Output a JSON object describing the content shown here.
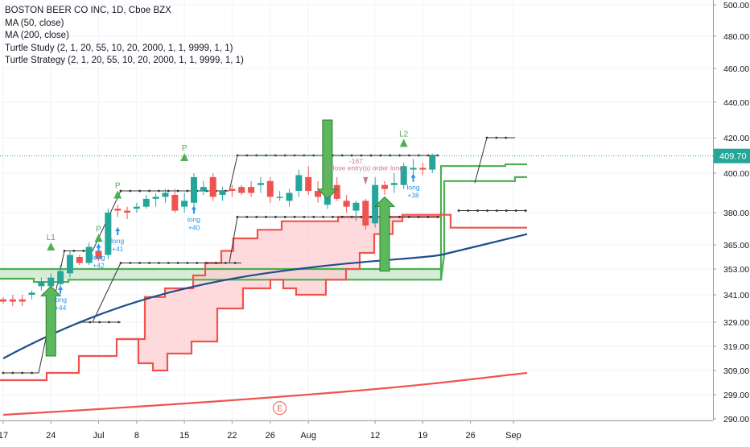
{
  "legend": {
    "symbol": "BOSTON BEER CO INC, 1D, Cboe BZX",
    "ma50": "MA (50, close)",
    "ma200": "MA (200, close)",
    "turtle_study": "Turtle Study (2, 1, 20, 55, 10, 20, 2000, 1, 1, 9999, 1, 1)",
    "turtle_strategy": "Turtle Strategy (2, 1, 20, 55, 10, 20, 2000, 1, 1, 9999, 1, 1)"
  },
  "colors": {
    "up": "#26a69a",
    "down": "#ef5350",
    "ma50": "#1f4e8c",
    "ma200": "#ef5350",
    "donchian": "#333333",
    "green_line": "#4caf50",
    "red_line": "#ef5350",
    "price_line": "#26a69a"
  },
  "chart_data": {
    "type": "candlestick",
    "title": "BOSTON BEER CO INC, 1D, Cboe BZX",
    "ylim": [
      290,
      505
    ],
    "y_ticks": [
      500,
      480,
      460,
      440,
      420,
      400,
      380,
      365,
      353,
      341,
      329,
      319,
      309,
      299,
      290
    ],
    "y_tick_labels": [
      "500.00",
      "480.00",
      "460.00",
      "440.00",
      "420.00",
      "400.00",
      "380.00",
      "365.00",
      "353.00",
      "341.00",
      "329.00",
      "319.00",
      "309.00",
      "299.00",
      "290.00"
    ],
    "x_ticks": [
      {
        "label": "17",
        "date": "2019-06-17"
      },
      {
        "label": "24",
        "date": "2019-06-24"
      },
      {
        "label": "Jul",
        "date": "2019-07-01"
      },
      {
        "label": "8",
        "date": "2019-07-08"
      },
      {
        "label": "15",
        "date": "2019-07-15"
      },
      {
        "label": "22",
        "date": "2019-07-22"
      },
      {
        "label": "26",
        "date": "2019-07-26"
      },
      {
        "label": "Aug",
        "date": "2019-08-01"
      },
      {
        "label": "12",
        "date": "2019-08-12"
      },
      {
        "label": "19",
        "date": "2019-08-19"
      },
      {
        "label": "26",
        "date": "2019-08-26"
      },
      {
        "label": "Sep",
        "date": "2019-09-01"
      }
    ],
    "last_price": 409.7,
    "last_price_label": "409.70",
    "candles": [
      {
        "date": "2019-06-17",
        "o": 339,
        "h": 340,
        "l": 337,
        "c": 338
      },
      {
        "date": "2019-06-18",
        "o": 339,
        "h": 341,
        "l": 336,
        "c": 338
      },
      {
        "date": "2019-06-19",
        "o": 339,
        "h": 341,
        "l": 336,
        "c": 338
      },
      {
        "date": "2019-06-20",
        "o": 341,
        "h": 343,
        "l": 339,
        "c": 342
      },
      {
        "date": "2019-06-21",
        "o": 345,
        "h": 349,
        "l": 343,
        "c": 347
      },
      {
        "date": "2019-06-24",
        "o": 345,
        "h": 351,
        "l": 343,
        "c": 349
      },
      {
        "date": "2019-06-25",
        "o": 346,
        "h": 355,
        "l": 344,
        "c": 352
      },
      {
        "date": "2019-06-26",
        "o": 351,
        "h": 362,
        "l": 349,
        "c": 360
      },
      {
        "date": "2019-06-27",
        "o": 359,
        "h": 360,
        "l": 355,
        "c": 356
      },
      {
        "date": "2019-06-28",
        "o": 356,
        "h": 366,
        "l": 355,
        "c": 364
      },
      {
        "date": "2019-07-01",
        "o": 362,
        "h": 364,
        "l": 357,
        "c": 358
      },
      {
        "date": "2019-07-02",
        "o": 360,
        "h": 382,
        "l": 358,
        "c": 380
      },
      {
        "date": "2019-07-03",
        "o": 382,
        "h": 384,
        "l": 378,
        "c": 381
      },
      {
        "date": "2019-07-05",
        "o": 381,
        "h": 383,
        "l": 377,
        "c": 380
      },
      {
        "date": "2019-07-08",
        "o": 382,
        "h": 385,
        "l": 380,
        "c": 383
      },
      {
        "date": "2019-07-09",
        "o": 383,
        "h": 389,
        "l": 382,
        "c": 387
      },
      {
        "date": "2019-07-10",
        "o": 387,
        "h": 390,
        "l": 383,
        "c": 388
      },
      {
        "date": "2019-07-11",
        "o": 388,
        "h": 392,
        "l": 385,
        "c": 390
      },
      {
        "date": "2019-07-12",
        "o": 389,
        "h": 392,
        "l": 380,
        "c": 381
      },
      {
        "date": "2019-07-15",
        "o": 383,
        "h": 390,
        "l": 380,
        "c": 386
      },
      {
        "date": "2019-07-16",
        "o": 385,
        "h": 400,
        "l": 383,
        "c": 398
      },
      {
        "date": "2019-07-17",
        "o": 391,
        "h": 396,
        "l": 389,
        "c": 393
      },
      {
        "date": "2019-07-18",
        "o": 398,
        "h": 400,
        "l": 386,
        "c": 388
      },
      {
        "date": "2019-07-19",
        "o": 389,
        "h": 393,
        "l": 386,
        "c": 391
      },
      {
        "date": "2019-07-22",
        "o": 392,
        "h": 394,
        "l": 388,
        "c": 391
      },
      {
        "date": "2019-07-23",
        "o": 393,
        "h": 394,
        "l": 389,
        "c": 390
      },
      {
        "date": "2019-07-24",
        "o": 393,
        "h": 396,
        "l": 388,
        "c": 390
      },
      {
        "date": "2019-07-25",
        "o": 394,
        "h": 398,
        "l": 390,
        "c": 395
      },
      {
        "date": "2019-07-26",
        "o": 396,
        "h": 398,
        "l": 385,
        "c": 388
      },
      {
        "date": "2019-07-29",
        "o": 388,
        "h": 391,
        "l": 386,
        "c": 388
      },
      {
        "date": "2019-07-30",
        "o": 386,
        "h": 392,
        "l": 383,
        "c": 390
      },
      {
        "date": "2019-07-31",
        "o": 391,
        "h": 402,
        "l": 388,
        "c": 399
      },
      {
        "date": "2019-08-01",
        "o": 398,
        "h": 404,
        "l": 389,
        "c": 391
      },
      {
        "date": "2019-08-02",
        "o": 391,
        "h": 396,
        "l": 385,
        "c": 388
      },
      {
        "date": "2019-08-05",
        "o": 384,
        "h": 395,
        "l": 382,
        "c": 392
      },
      {
        "date": "2019-08-06",
        "o": 394,
        "h": 398,
        "l": 386,
        "c": 387
      },
      {
        "date": "2019-08-07",
        "o": 386,
        "h": 389,
        "l": 380,
        "c": 383
      },
      {
        "date": "2019-08-08",
        "o": 381,
        "h": 386,
        "l": 376,
        "c": 385
      },
      {
        "date": "2019-08-09",
        "o": 386,
        "h": 387,
        "l": 372,
        "c": 374
      },
      {
        "date": "2019-08-12",
        "o": 375,
        "h": 398,
        "l": 373,
        "c": 394
      },
      {
        "date": "2019-08-13",
        "o": 394,
        "h": 396,
        "l": 389,
        "c": 392
      },
      {
        "date": "2019-08-14",
        "o": 394,
        "h": 400,
        "l": 390,
        "c": 395
      },
      {
        "date": "2019-08-15",
        "o": 394,
        "h": 406,
        "l": 392,
        "c": 404
      },
      {
        "date": "2019-08-16",
        "o": 402,
        "h": 408,
        "l": 399,
        "c": 403
      },
      {
        "date": "2019-08-19",
        "o": 403,
        "h": 406,
        "l": 399,
        "c": 402
      },
      {
        "date": "2019-08-20",
        "o": 402,
        "h": 411,
        "l": 400,
        "c": 409.7
      }
    ],
    "annotations": {
      "markers": [
        {
          "text": "L1",
          "date": "2019-06-24",
          "price": 365
        },
        {
          "text": "P",
          "date": "2019-07-01",
          "price": 369
        },
        {
          "text": "P",
          "date": "2019-07-03",
          "price": 390
        },
        {
          "text": "P",
          "date": "2019-07-15",
          "price": 410
        },
        {
          "text": "L2",
          "date": "2019-08-15",
          "price": 418
        },
        {
          "text": "E",
          "date": "2019-07-29",
          "price": 294
        }
      ],
      "trade_labels": [
        {
          "text": "long",
          "value": "+44",
          "date": "2019-06-25",
          "price": 340
        },
        {
          "text": "long",
          "value": "+41",
          "date": "2019-07-03",
          "price": 368
        },
        {
          "text": "long",
          "value": "+42",
          "date": "2019-07-01",
          "price": 360
        },
        {
          "text": "long",
          "value": "+40",
          "date": "2019-07-16",
          "price": 378
        },
        {
          "text": "long",
          "value": "+38",
          "date": "2019-08-16",
          "price": 394
        }
      ],
      "exit_label": {
        "text": "Close entry(s) order long",
        "value": "-167"
      }
    }
  }
}
